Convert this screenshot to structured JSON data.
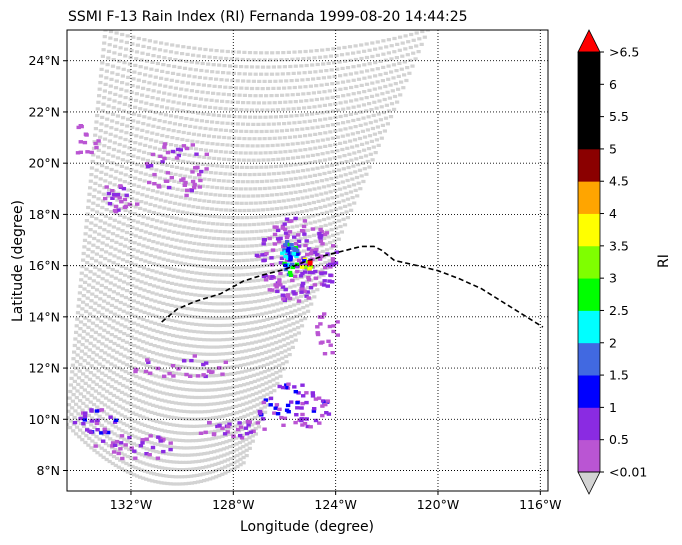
{
  "chart_data": {
    "type": "heatmap",
    "title": "SSMI F-13 Rain Index (RI) Fernanda 1999-08-20 14:44:25",
    "xlabel": "Longitude (degree)",
    "ylabel": "Latitude (degree)",
    "xlim": [
      -134.5,
      -115.7
    ],
    "ylim": [
      7.2,
      25.2
    ],
    "x_ticks": [
      {
        "value": -132,
        "label": "132°W"
      },
      {
        "value": -128,
        "label": "128°W"
      },
      {
        "value": -124,
        "label": "124°W"
      },
      {
        "value": -120,
        "label": "120°W"
      },
      {
        "value": -116,
        "label": "116°W"
      }
    ],
    "y_ticks": [
      {
        "value": 8,
        "label": "8°N"
      },
      {
        "value": 10,
        "label": "10°N"
      },
      {
        "value": 12,
        "label": "12°N"
      },
      {
        "value": 14,
        "label": "14°N"
      },
      {
        "value": 16,
        "label": "16°N"
      },
      {
        "value": 18,
        "label": "18°N"
      },
      {
        "value": 20,
        "label": "20°N"
      },
      {
        "value": 22,
        "label": "22°N"
      },
      {
        "value": 24,
        "label": "24°N"
      }
    ],
    "grid": true,
    "grid_style": "dotted",
    "swath_color": "#d3d3d3",
    "colorbar": {
      "label": "RI",
      "orientation": "vertical",
      "placement": "right",
      "levels": [
        0.01,
        0.5,
        1,
        1.5,
        2,
        2.5,
        3,
        3.5,
        4,
        4.5,
        5,
        5.5,
        6,
        6.5
      ],
      "tick_labels": [
        "<0.01",
        "0.5",
        "1",
        "1.5",
        "2",
        "2.5",
        "3",
        "3.5",
        "4",
        "4.5",
        "5",
        "5.5",
        "6",
        ">6.5"
      ],
      "colors": [
        "#ba55d3",
        "#8a2be2",
        "#0000ff",
        "#4169e1",
        "#00ffff",
        "#00ff00",
        "#7fff00",
        "#ffff00",
        "#ffa500",
        "#8b0000",
        "#000000",
        "#000000",
        "#000000"
      ],
      "under_color": "#d3d3d3",
      "over_color": "#ff0000",
      "extend": "both"
    },
    "track": {
      "style": "dashed",
      "color": "#000000",
      "lon": [
        -130.8,
        -130.2,
        -129.5,
        -128.5,
        -127.6,
        -126.8,
        -126.0,
        -125.2,
        -124.4,
        -123.6,
        -123.0,
        -122.5,
        -122.2,
        -121.7,
        -120.8,
        -120.0,
        -119.2,
        -118.3,
        -117.5,
        -116.7,
        -115.9
      ],
      "lat": [
        13.8,
        14.3,
        14.6,
        14.9,
        15.4,
        15.65,
        15.85,
        16.15,
        16.4,
        16.6,
        16.75,
        16.75,
        16.6,
        16.2,
        16.0,
        15.8,
        15.5,
        15.1,
        14.6,
        14.1,
        13.6
      ]
    },
    "storm_center": {
      "lon": -125.0,
      "lat": 16.1,
      "color": "#ff0000"
    },
    "swath_edges": [
      {
        "lon": -133.0,
        "lat": 25.2
      },
      {
        "lon": -120.4,
        "lat": 25.2
      },
      {
        "lon": -127.6,
        "lat": 8.3
      },
      {
        "lon": -134.5,
        "lat": 9.8
      }
    ],
    "rain_clusters": [
      {
        "lon": -130.2,
        "lat": 19.8,
        "spread_lon": 1.4,
        "spread_lat": 1.1,
        "count": 50,
        "classes": [
          0,
          0,
          0,
          1
        ]
      },
      {
        "lon": -132.4,
        "lat": 18.6,
        "spread_lon": 0.9,
        "spread_lat": 0.6,
        "count": 24,
        "classes": [
          0,
          0,
          1
        ]
      },
      {
        "lon": -133.8,
        "lat": 20.9,
        "spread_lon": 0.6,
        "spread_lat": 0.6,
        "count": 14,
        "classes": [
          0
        ]
      },
      {
        "lon": -125.5,
        "lat": 16.2,
        "spread_lon": 1.6,
        "spread_lat": 1.7,
        "count": 170,
        "classes": [
          0,
          0,
          0,
          1,
          1,
          1
        ]
      },
      {
        "lon": -125.8,
        "lat": 16.3,
        "spread_lon": 0.35,
        "spread_lat": 0.7,
        "count": 40,
        "classes": [
          2,
          3,
          3,
          4,
          4,
          5
        ]
      },
      {
        "lon": -125.2,
        "lat": 16.0,
        "spread_lon": 0.25,
        "spread_lat": 0.25,
        "count": 8,
        "classes": [
          2,
          6,
          7
        ]
      },
      {
        "lon": -124.3,
        "lat": 13.5,
        "spread_lon": 0.5,
        "spread_lat": 1.0,
        "count": 18,
        "classes": [
          0
        ]
      },
      {
        "lon": -130.0,
        "lat": 12.0,
        "spread_lon": 2.0,
        "spread_lat": 0.5,
        "count": 28,
        "classes": [
          0,
          0,
          1
        ]
      },
      {
        "lon": -125.6,
        "lat": 10.5,
        "spread_lon": 1.5,
        "spread_lat": 0.9,
        "count": 70,
        "classes": [
          0,
          0,
          1,
          1,
          2
        ]
      },
      {
        "lon": -131.8,
        "lat": 8.9,
        "spread_lon": 1.6,
        "spread_lat": 0.5,
        "count": 34,
        "classes": [
          0,
          0,
          1
        ]
      },
      {
        "lon": -133.3,
        "lat": 9.9,
        "spread_lon": 0.9,
        "spread_lat": 0.5,
        "count": 30,
        "classes": [
          0,
          1,
          1,
          2
        ]
      },
      {
        "lon": -128.0,
        "lat": 9.6,
        "spread_lon": 1.4,
        "spread_lat": 0.4,
        "count": 30,
        "classes": [
          0,
          0,
          1
        ]
      }
    ]
  }
}
